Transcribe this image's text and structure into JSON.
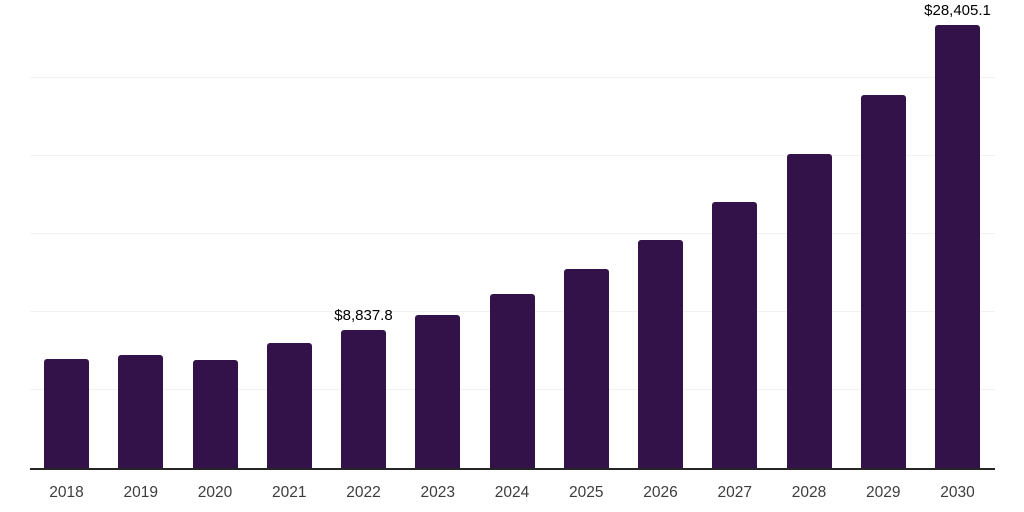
{
  "chart_data": {
    "type": "bar",
    "title": "",
    "xlabel": "",
    "ylabel": "",
    "categories": [
      "2018",
      "2019",
      "2020",
      "2021",
      "2022",
      "2023",
      "2024",
      "2025",
      "2026",
      "2027",
      "2028",
      "2029",
      "2030"
    ],
    "values": [
      7000,
      7250,
      6930,
      7990,
      8837.8,
      9810,
      11160,
      12740,
      14610,
      17040,
      20160,
      23930,
      28405.1
    ],
    "data_labels": [
      null,
      null,
      null,
      null,
      "$8,837.8",
      null,
      null,
      null,
      null,
      null,
      null,
      null,
      "$28,405.1"
    ],
    "ylim": [
      0,
      30000
    ],
    "ytick_step": 5000,
    "grid": true,
    "y_tick_labels_shown": false,
    "legend_position": "none",
    "bar_color": "#33124a",
    "gridline_color": "#f2f2f2",
    "axis_color": "#262626",
    "data_label_color": "#000000",
    "tick_label_color": "#3c3c3c"
  }
}
